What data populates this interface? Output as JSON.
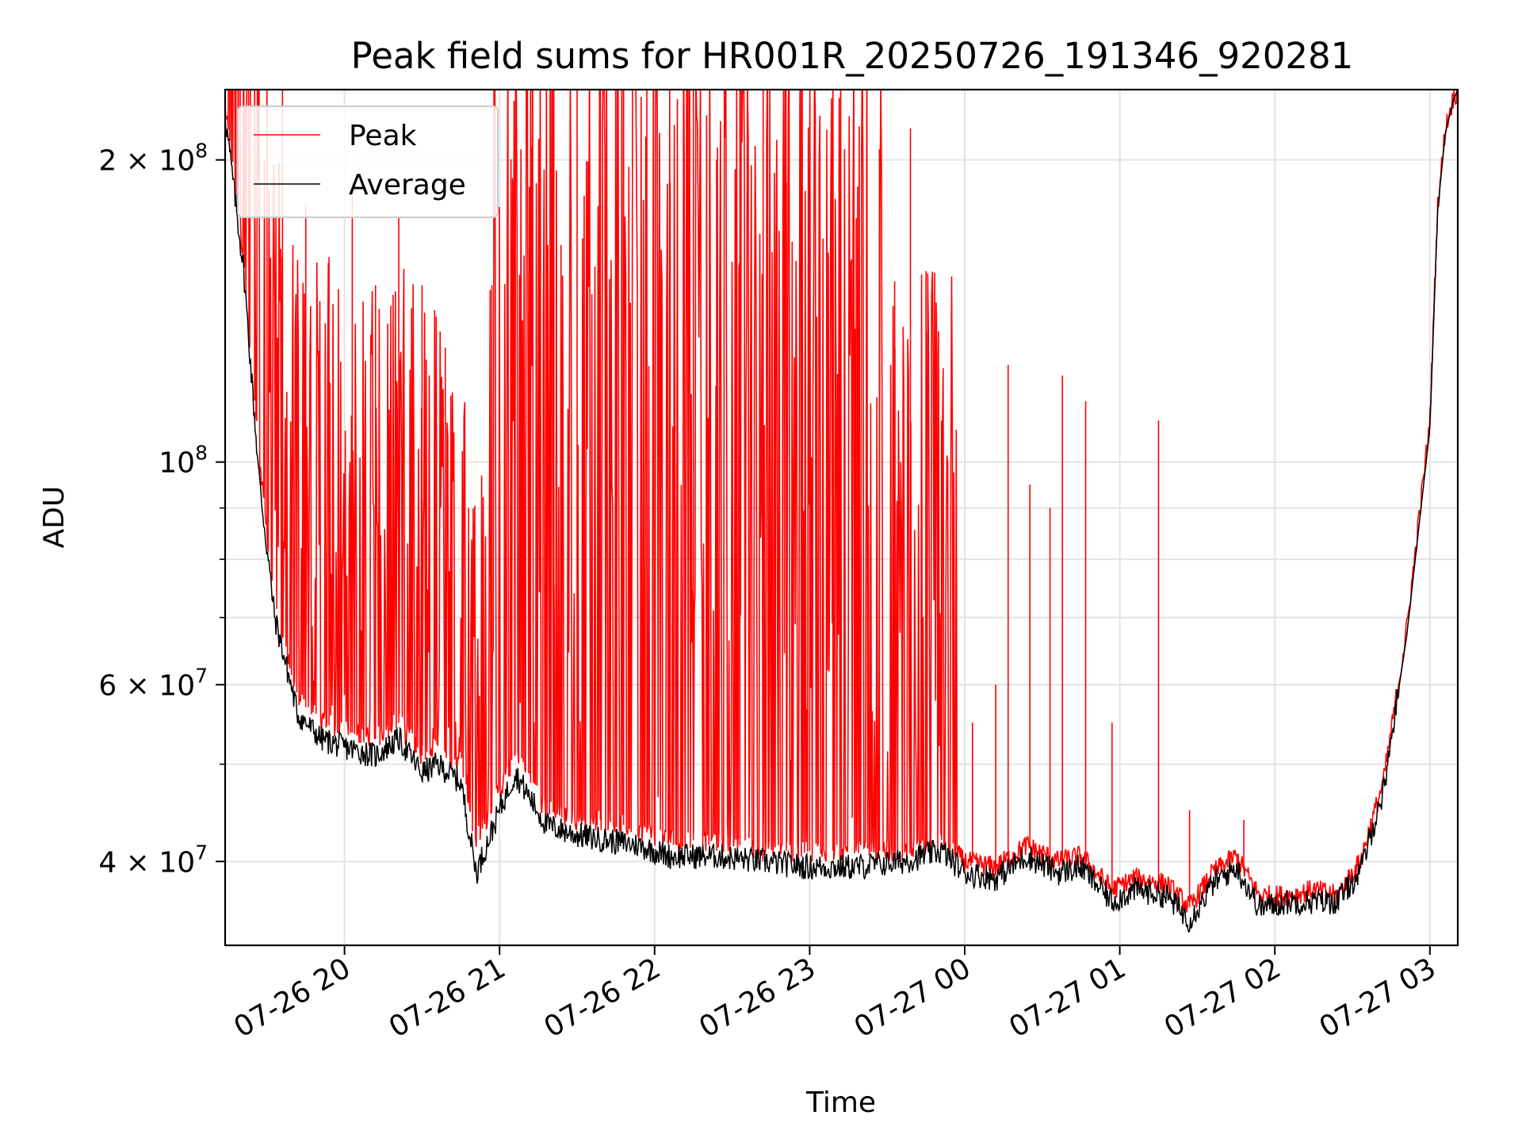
{
  "chart_data": {
    "type": "line",
    "title": "Peak field sums for HR001R_20250726_191346_920281",
    "xlabel": "Time",
    "ylabel": "ADU",
    "yscale": "log",
    "ylim": [
      33000000,
      235000000
    ],
    "xlim_hours": [
      19.23,
      27.18
    ],
    "grid": true,
    "legend_position": "top-left",
    "x_ticks": [
      {
        "label": "07-26 20",
        "hour": 20
      },
      {
        "label": "07-26 21",
        "hour": 21
      },
      {
        "label": "07-26 22",
        "hour": 22
      },
      {
        "label": "07-26 23",
        "hour": 23
      },
      {
        "label": "07-27 00",
        "hour": 24
      },
      {
        "label": "07-27 01",
        "hour": 25
      },
      {
        "label": "07-27 02",
        "hour": 26
      },
      {
        "label": "07-27 03",
        "hour": 27
      }
    ],
    "y_ticks": [
      {
        "mantissa": "4 × 10",
        "exp": "7",
        "value": 40000000
      },
      {
        "mantissa": "6 × 10",
        "exp": "7",
        "value": 60000000
      },
      {
        "mantissa": "10",
        "exp": "8",
        "value": 100000000
      },
      {
        "mantissa": "2 × 10",
        "exp": "8",
        "value": 200000000
      }
    ],
    "y_minor_ticks": [
      50000000,
      70000000,
      80000000,
      90000000
    ],
    "series": [
      {
        "name": "Peak",
        "color": "#ff0000",
        "baseline_hours": [
          19.23,
          19.35,
          19.45,
          19.55,
          19.7,
          19.85,
          20.0,
          20.2,
          20.35,
          20.5,
          20.6,
          20.75,
          20.85,
          21.0,
          21.1,
          21.3,
          21.5,
          21.7,
          21.9,
          22.1,
          22.4,
          22.7,
          23.0,
          23.3,
          23.6,
          23.85,
          24.0,
          24.2,
          24.4,
          24.6,
          24.75,
          24.95,
          25.1,
          25.3,
          25.45,
          25.6,
          25.75,
          25.9,
          26.1,
          26.25,
          26.4,
          26.55,
          26.7,
          26.85,
          27.0,
          27.05,
          27.1,
          27.15,
          27.18
        ],
        "baseline_values": [
          225000000,
          160000000,
          100000000,
          72000000,
          58000000,
          55000000,
          54000000,
          53000000,
          55000000,
          51000000,
          52000000,
          50000000,
          42000000,
          47000000,
          51000000,
          45000000,
          44000000,
          44000000,
          43000000,
          42000000,
          42000000,
          41000000,
          41000000,
          41000000,
          41000000,
          42000000,
          40000000,
          39500000,
          41500000,
          40000000,
          40500000,
          37500000,
          38500000,
          38000000,
          36000000,
          39000000,
          40500000,
          37000000,
          37000000,
          37500000,
          37000000,
          40000000,
          48000000,
          68000000,
          110000000,
          180000000,
          215000000,
          230000000,
          235000000
        ],
        "spikes": [
          {
            "hour": 19.3,
            "value": 235000000
          },
          {
            "hour": 19.42,
            "value": 235000000
          },
          {
            "hour": 19.5,
            "value": 235000000
          },
          {
            "hour": 19.6,
            "value": 235000000
          },
          {
            "hour": 19.75,
            "value": 180000000
          },
          {
            "hour": 19.9,
            "value": 160000000
          },
          {
            "hour": 20.05,
            "value": 190000000
          },
          {
            "hour": 20.2,
            "value": 150000000
          },
          {
            "hour": 20.35,
            "value": 175000000
          },
          {
            "hour": 20.5,
            "value": 150000000
          },
          {
            "hour": 20.65,
            "value": 130000000
          },
          {
            "hour": 20.8,
            "value": 90000000
          },
          {
            "hour": 20.95,
            "value": 150000000
          },
          {
            "hour": 21.1,
            "value": 160000000
          },
          {
            "hour": 21.2,
            "value": 235000000
          },
          {
            "hour": 21.35,
            "value": 235000000
          },
          {
            "hour": 21.5,
            "value": 235000000
          },
          {
            "hour": 21.65,
            "value": 235000000
          },
          {
            "hour": 21.8,
            "value": 235000000
          },
          {
            "hour": 21.95,
            "value": 235000000
          },
          {
            "hour": 22.1,
            "value": 190000000
          },
          {
            "hour": 22.25,
            "value": 235000000
          },
          {
            "hour": 22.4,
            "value": 200000000
          },
          {
            "hour": 22.55,
            "value": 235000000
          },
          {
            "hour": 22.7,
            "value": 235000000
          },
          {
            "hour": 22.85,
            "value": 190000000
          },
          {
            "hour": 23.0,
            "value": 180000000
          },
          {
            "hour": 23.15,
            "value": 170000000
          },
          {
            "hour": 23.3,
            "value": 175000000
          },
          {
            "hour": 23.45,
            "value": 205000000
          },
          {
            "hour": 23.55,
            "value": 130000000
          },
          {
            "hour": 23.65,
            "value": 215000000
          },
          {
            "hour": 23.75,
            "value": 155000000
          },
          {
            "hour": 23.85,
            "value": 110000000
          },
          {
            "hour": 24.05,
            "value": 55000000
          },
          {
            "hour": 24.2,
            "value": 60000000
          },
          {
            "hour": 24.28,
            "value": 125000000
          },
          {
            "hour": 24.42,
            "value": 95000000
          },
          {
            "hour": 24.55,
            "value": 90000000
          },
          {
            "hour": 24.63,
            "value": 122000000
          },
          {
            "hour": 24.78,
            "value": 115000000
          },
          {
            "hour": 24.95,
            "value": 55000000
          },
          {
            "hour": 25.25,
            "value": 110000000
          },
          {
            "hour": 25.45,
            "value": 45000000
          },
          {
            "hour": 25.8,
            "value": 44000000
          }
        ]
      },
      {
        "name": "Average",
        "color": "#000000",
        "hours": [
          19.23,
          19.35,
          19.45,
          19.55,
          19.7,
          19.85,
          20.0,
          20.2,
          20.35,
          20.5,
          20.6,
          20.75,
          20.85,
          21.0,
          21.1,
          21.3,
          21.5,
          21.7,
          21.9,
          22.1,
          22.4,
          22.7,
          23.0,
          23.3,
          23.6,
          23.85,
          24.0,
          24.2,
          24.4,
          24.6,
          24.75,
          24.95,
          25.1,
          25.3,
          25.45,
          25.6,
          25.75,
          25.9,
          26.1,
          26.25,
          26.4,
          26.55,
          26.7,
          26.85,
          27.0,
          27.05,
          27.1,
          27.15,
          27.18
        ],
        "values": [
          222000000,
          155000000,
          96000000,
          70000000,
          56000000,
          53000000,
          52000000,
          51000000,
          53000000,
          49000000,
          50000000,
          48000000,
          39000000,
          45000000,
          49000000,
          43500000,
          42500000,
          42000000,
          41500000,
          40500000,
          40500000,
          40000000,
          39500000,
          39500000,
          40000000,
          41000000,
          39000000,
          38500000,
          40500000,
          39000000,
          39500000,
          36500000,
          37500000,
          37000000,
          35000000,
          38000000,
          39500000,
          36000000,
          36500000,
          36500000,
          36500000,
          39000000,
          47000000,
          67000000,
          108000000,
          178000000,
          213000000,
          229000000,
          235000000
        ]
      }
    ]
  }
}
